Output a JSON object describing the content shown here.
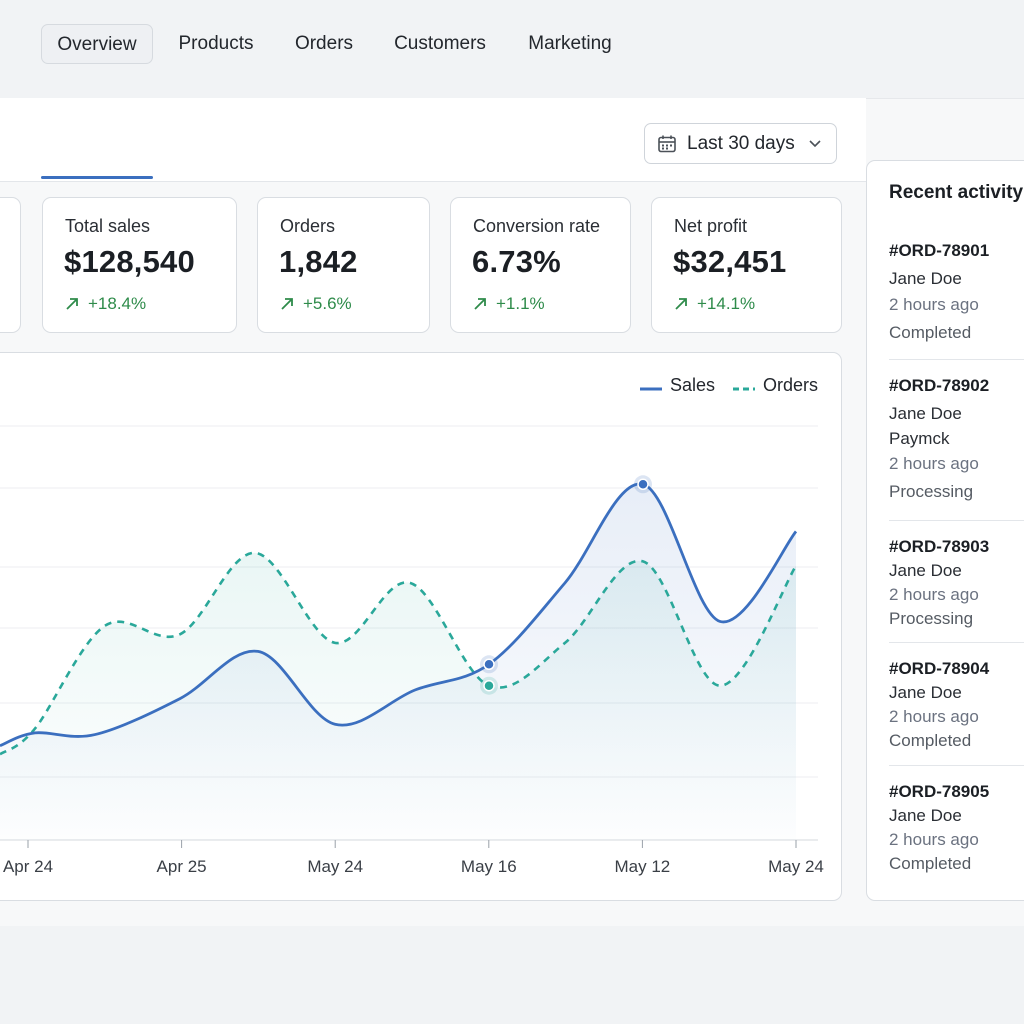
{
  "tabs": [
    {
      "label": "Overview",
      "active": true
    },
    {
      "label": "Products",
      "active": false
    },
    {
      "label": "Orders",
      "active": false
    },
    {
      "label": "Customers",
      "active": false
    },
    {
      "label": "Marketing",
      "active": false
    }
  ],
  "date_range": {
    "label": "Last 30 days",
    "icon": "calendar-icon",
    "dropdown_icon": "chevron-down-icon"
  },
  "kpis": [
    {
      "label": "Total sales",
      "value": "$128,540",
      "delta": "+18.4%",
      "trend_icon": "arrow-up-right-icon"
    },
    {
      "label": "Orders",
      "value": "1,842",
      "delta": "+5.6%",
      "trend_icon": "arrow-up-right-icon"
    },
    {
      "label": "Conversion rate",
      "value": "6.73%",
      "delta": "+1.1%",
      "trend_icon": "arrow-up-right-icon"
    },
    {
      "label": "Net profit",
      "value": "$32,451",
      "delta": "+14.1%",
      "trend_icon": "arrow-up-right-icon"
    }
  ],
  "colors": {
    "accent": "#3b6fbf",
    "orders_line": "#2aa89a",
    "positive": "#2e8b4a"
  },
  "chart_data": {
    "type": "line",
    "x_labels": [
      "Apr 24",
      "Apr 25",
      "May 24",
      "May 16",
      "May 12",
      "May 24"
    ],
    "series": [
      {
        "name": "Sales",
        "style": "solid",
        "color": "#3b6fbf",
        "values": [
          50,
          42,
          60,
          120,
          65,
          100,
          200,
          340,
          240,
          310
        ]
      },
      {
        "name": "Orders",
        "style": "dashed",
        "color": "#2aa89a",
        "values": [
          30,
          95,
          260,
          150,
          300,
          90,
          250,
          80,
          230
        ]
      }
    ],
    "highlighted_label": "May 16",
    "grid": true,
    "legend_position": "top-right",
    "y_tick_labels_visible": false
  },
  "activity": {
    "title": "Recent activity",
    "items": [
      {
        "order": "#ORD-78901",
        "lines": [
          "Jane Doe"
        ],
        "time": "2 hours ago",
        "status": "Completed"
      },
      {
        "order": "#ORD-78902",
        "lines": [
          "Jane Doe",
          "Paymck"
        ],
        "time": "2 hours ago",
        "status": "Processing"
      },
      {
        "order": "#ORD-78903",
        "lines": [
          "Jane Doe"
        ],
        "time": "2 hours ago",
        "status": "Processing"
      },
      {
        "order": "#ORD-78904",
        "lines": [
          "Jane Doe"
        ],
        "time": "2 hours ago",
        "status": "Completed"
      },
      {
        "order": "#ORD-78905",
        "lines": [
          "Jane Doe"
        ],
        "time": "2 hours ago",
        "status": "Completed"
      }
    ]
  }
}
